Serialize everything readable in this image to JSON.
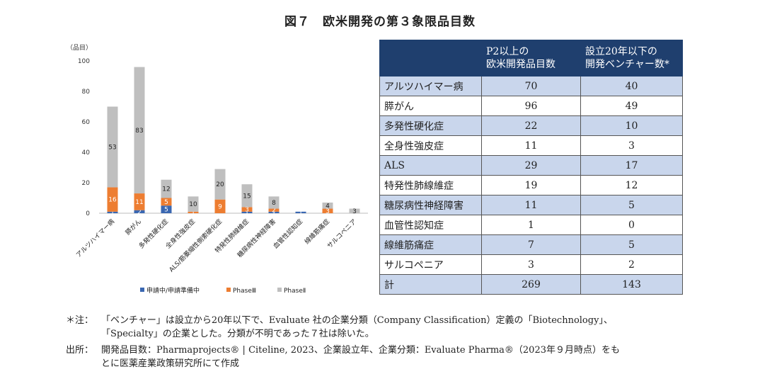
{
  "title": "図７　欧米開発の第３象限品目数",
  "chart_data": {
    "type": "bar",
    "stacked": true,
    "ylabel": "（品目）",
    "ylim": [
      0,
      100
    ],
    "yticks": [
      0,
      20,
      40,
      60,
      80,
      100
    ],
    "categories": [
      "アルツハイマー病",
      "膵がん",
      "多発性硬化症",
      "全身性強皮症",
      "ALS/筋萎縮性側索硬化症",
      "特発性肺線維症",
      "糖尿病性神経障害",
      "血管性認知症",
      "線維筋痛症",
      "サルコペニア"
    ],
    "series": [
      {
        "name": "申請中/申請準備中",
        "color": "#3a67b1",
        "values": [
          1,
          2,
          5,
          0,
          0,
          1,
          1,
          1,
          0,
          0
        ],
        "labels": [
          "1",
          "2",
          "5",
          "",
          "",
          "1",
          "1",
          "1",
          "",
          ""
        ]
      },
      {
        "name": "PhaseⅢ",
        "color": "#ed7d31",
        "values": [
          16,
          11,
          5,
          1,
          9,
          3,
          2,
          0,
          3,
          0
        ],
        "labels": [
          "16",
          "11",
          "5",
          "1",
          "9",
          "3",
          "2",
          "",
          "3",
          ""
        ]
      },
      {
        "name": "PhaseⅡ",
        "color": "#bfbfbf",
        "values": [
          53,
          83,
          12,
          10,
          20,
          15,
          8,
          0,
          4,
          3
        ],
        "labels": [
          "53",
          "83",
          "12",
          "10",
          "20",
          "15",
          "8",
          "",
          "4",
          "3"
        ]
      }
    ],
    "legend_position": "bottom"
  },
  "table": {
    "headers": [
      "",
      "P2以上の\n欧米開発品目数",
      "設立20年以下の\n開発ベンチャー数*"
    ],
    "rows": [
      [
        "アルツハイマー病",
        "70",
        "40"
      ],
      [
        "膵がん",
        "96",
        "49"
      ],
      [
        "多発性硬化症",
        "22",
        "10"
      ],
      [
        "全身性強皮症",
        "11",
        "3"
      ],
      [
        "ALS",
        "29",
        "17"
      ],
      [
        "特発性肺線維症",
        "19",
        "12"
      ],
      [
        "糖尿病性神経障害",
        "11",
        "5"
      ],
      [
        "血管性認知症",
        "1",
        "0"
      ],
      [
        "線維筋痛症",
        "7",
        "5"
      ],
      [
        "サルコペニア",
        "3",
        "2"
      ],
      [
        "計",
        "269",
        "143"
      ]
    ]
  },
  "notes": {
    "note_label": "＊注：",
    "note_line1": "「ベンチャー」は設立から20年以下で、Evaluate 社の企業分類（Company Classification）定義の「Biotechnology」、",
    "note_line2": "「Specialty」の企業とした。分類が不明であった７社は除いた。",
    "source_label": "出所：",
    "source_line1": "開発品目数：Pharmaprojects® | Citeline, 2023、企業設立年、企業分類：Evaluate Pharma®（2023年９月時点）をも",
    "source_line2": "とに医薬産業政策研究所にて作成"
  }
}
